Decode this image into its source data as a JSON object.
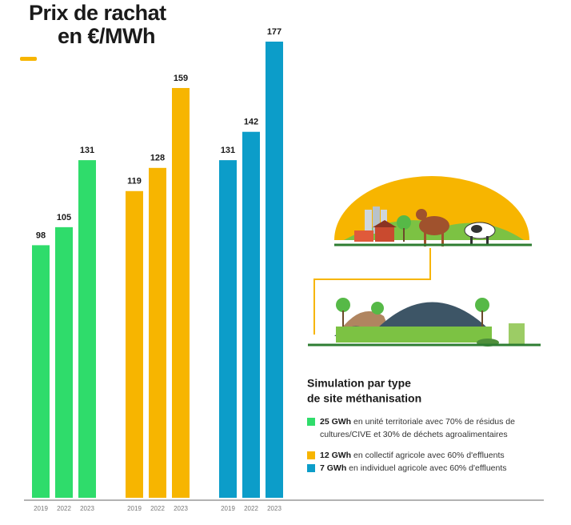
{
  "chart_data": {
    "type": "bar",
    "title_lines": [
      "Prix de rachat",
      "en €/MWh"
    ],
    "categories": [
      "2019",
      "2022",
      "2023"
    ],
    "series": [
      {
        "name": "25 GWh",
        "description_lines": [
          "en unité territoriale avec 70% de résidus de",
          "cultures/CIVE et 30% de déchets agroalimentaires"
        ],
        "color": "#2fdc6b",
        "values": [
          98,
          105,
          131
        ]
      },
      {
        "name": "12 GWh",
        "description_lines": [
          "en collectif agricole avec 60% d'effluents"
        ],
        "color": "#f7b500",
        "values": [
          119,
          128,
          159
        ]
      },
      {
        "name": "7 GWh",
        "description_lines": [
          "en individuel agricole avec 60% d'effluents"
        ],
        "color": "#0c9dc9",
        "values": [
          131,
          142,
          177
        ]
      }
    ],
    "legend_title_lines": [
      "Simulation par type",
      "de site méthanisation"
    ]
  }
}
